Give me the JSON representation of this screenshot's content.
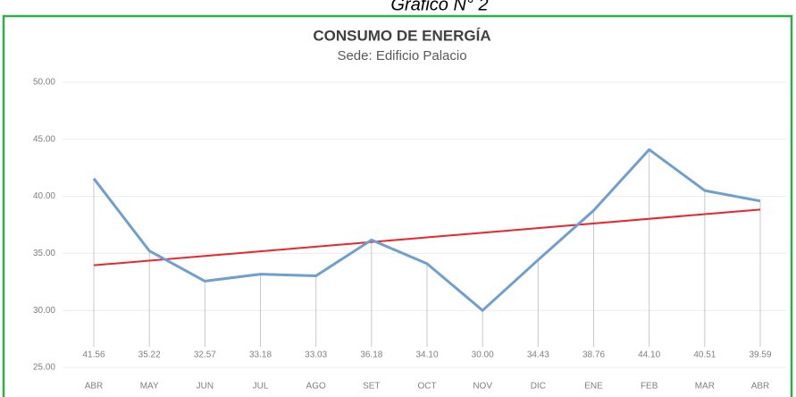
{
  "caption": "Gráfico N° 2",
  "chart_data": {
    "type": "line",
    "title": "CONSUMO DE ENERGÍA",
    "subtitle": "Sede: Edificio Palacio",
    "categories": [
      "ABR",
      "MAY",
      "JUN",
      "JUL",
      "AGO",
      "SET",
      "OCT",
      "NOV",
      "DIC",
      "ENE",
      "FEB",
      "MAR",
      "ABR"
    ],
    "series": [
      {
        "color": "#6f9fcf",
        "values": [
          41.56,
          35.22,
          32.57,
          33.18,
          33.03,
          36.18,
          34.1,
          30.0,
          34.43,
          38.76,
          44.1,
          40.51,
          39.59
        ],
        "value_labels": [
          "41.56",
          "35.22",
          "32.57",
          "33.18",
          "33.03",
          "36.18",
          "34.10",
          "30.00",
          "34.43",
          "38.76",
          "44.10",
          "40.51",
          "39.59"
        ]
      }
    ],
    "trendline": {
      "kind": "linear",
      "color": "#e8262c"
    },
    "ylim": [
      25,
      50
    ],
    "yticks": [
      {
        "value": 25,
        "label": "25.00"
      },
      {
        "value": 30,
        "label": "30.00"
      },
      {
        "value": 35,
        "label": "35.00"
      },
      {
        "value": 40,
        "label": "40.00"
      },
      {
        "value": 45,
        "label": "45.00"
      },
      {
        "value": 50,
        "label": "50.00"
      }
    ],
    "grid": true
  }
}
